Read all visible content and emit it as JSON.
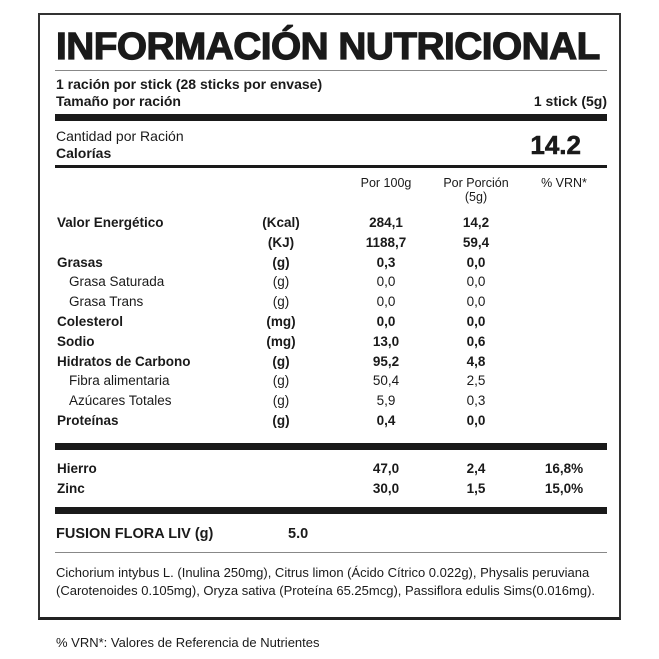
{
  "title": "INFORMACIÓN NUTRICIONAL",
  "serving": {
    "per_stick": "1 ración por stick (28 sticks por envase)",
    "size_label": "Tamaño por ración",
    "size_value": "1 stick (5g)"
  },
  "calories": {
    "amount_label": "Cantidad por Ración",
    "label": "Calorías",
    "value": "14.2"
  },
  "columns": {
    "per100": "Por 100g",
    "portion": "Por Porción",
    "portion_sub": "(5g)",
    "vrn": "% VRN*"
  },
  "rows": [
    {
      "label": "Valor Energético",
      "unit": "(Kcal)",
      "per100": "284,1",
      "portion": "14,2",
      "vrn": "",
      "bold": true,
      "sub": false
    },
    {
      "label": "",
      "unit": "(KJ)",
      "per100": "1188,7",
      "portion": "59,4",
      "vrn": "",
      "bold": true,
      "sub": false
    },
    {
      "label": "Grasas",
      "unit": "(g)",
      "per100": "0,3",
      "portion": "0,0",
      "vrn": "",
      "bold": true,
      "sub": false
    },
    {
      "label": "Grasa Saturada",
      "unit": "(g)",
      "per100": "0,0",
      "portion": "0,0",
      "vrn": "",
      "bold": false,
      "sub": true
    },
    {
      "label": "Grasa Trans",
      "unit": "(g)",
      "per100": "0,0",
      "portion": "0,0",
      "vrn": "",
      "bold": false,
      "sub": true
    },
    {
      "label": "Colesterol",
      "unit": "(mg)",
      "per100": "0,0",
      "portion": "0,0",
      "vrn": "",
      "bold": true,
      "sub": false
    },
    {
      "label": "Sodio",
      "unit": "(mg)",
      "per100": "13,0",
      "portion": "0,6",
      "vrn": "",
      "bold": true,
      "sub": false
    },
    {
      "label": "Hidratos de Carbono",
      "unit": "(g)",
      "per100": "95,2",
      "portion": "4,8",
      "vrn": "",
      "bold": true,
      "sub": false
    },
    {
      "label": "Fibra alimentaria",
      "unit": "(g)",
      "per100": "50,4",
      "portion": "2,5",
      "vrn": "",
      "bold": false,
      "sub": true
    },
    {
      "label": "Azúcares Totales",
      "unit": "(g)",
      "per100": "5,9",
      "portion": "0,3",
      "vrn": "",
      "bold": false,
      "sub": true
    },
    {
      "label": "Proteínas",
      "unit": "(g)",
      "per100": "0,4",
      "portion": "0,0",
      "vrn": "",
      "bold": true,
      "sub": false
    }
  ],
  "minerals": [
    {
      "label": "Hierro",
      "unit": "",
      "per100": "47,0",
      "portion": "2,4",
      "vrn": "16,8%",
      "bold": true,
      "sub": false
    },
    {
      "label": "Zinc",
      "unit": "",
      "per100": "30,0",
      "portion": "1,5",
      "vrn": "15,0%",
      "bold": true,
      "sub": false
    }
  ],
  "blend": {
    "label": "FUSION FLORA LIV (g)",
    "value": "5.0"
  },
  "ingredients": "Cichorium intybus L. (Inulina 250mg), Citrus limon (Ácido Cítrico 0.022g), Physalis peruviana (Carotenoides 0.105mg), Oryza sativa (Proteína 65.25mcg), Passiflora edulis Sims(0.016mg).",
  "footnote": "% VRN*: Valores de Referencia de Nutrientes"
}
